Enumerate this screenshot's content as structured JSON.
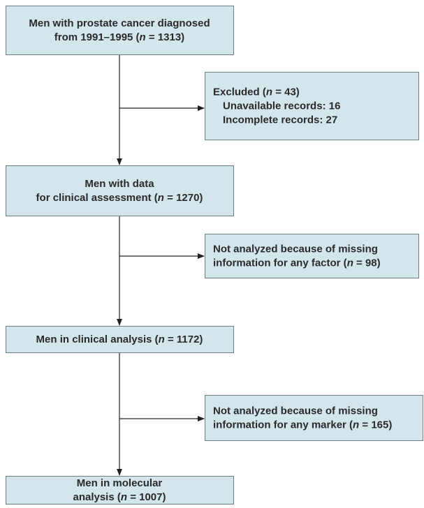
{
  "nodes": [
    {
      "lines": [
        [
          "Men with prostate cancer diagnosed"
        ],
        [
          "from 1991–1995 (",
          "n",
          " = 1313)"
        ]
      ]
    },
    {
      "lines": [
        [
          "Excluded (",
          "n",
          " = 43)"
        ],
        [
          "Unavailable records: 16"
        ],
        [
          "Incomplete records: 27"
        ]
      ]
    },
    {
      "lines": [
        [
          "Men with data"
        ],
        [
          "for clinical assessment (",
          "n",
          " = 1270)"
        ]
      ]
    },
    {
      "lines": [
        [
          "Not analyzed because of missing"
        ],
        [
          "information for any factor (",
          "n",
          " = 98)"
        ]
      ]
    },
    {
      "lines": [
        [
          "Men in clinical analysis (",
          "n",
          " = 1172)"
        ]
      ]
    },
    {
      "lines": [
        [
          "Not analyzed because of missing"
        ],
        [
          "information for any marker (",
          "n",
          " = 165)"
        ]
      ]
    },
    {
      "lines": [
        [
          "Men in molecular"
        ],
        [
          "analysis (",
          "n",
          " = 1007)"
        ]
      ]
    }
  ]
}
